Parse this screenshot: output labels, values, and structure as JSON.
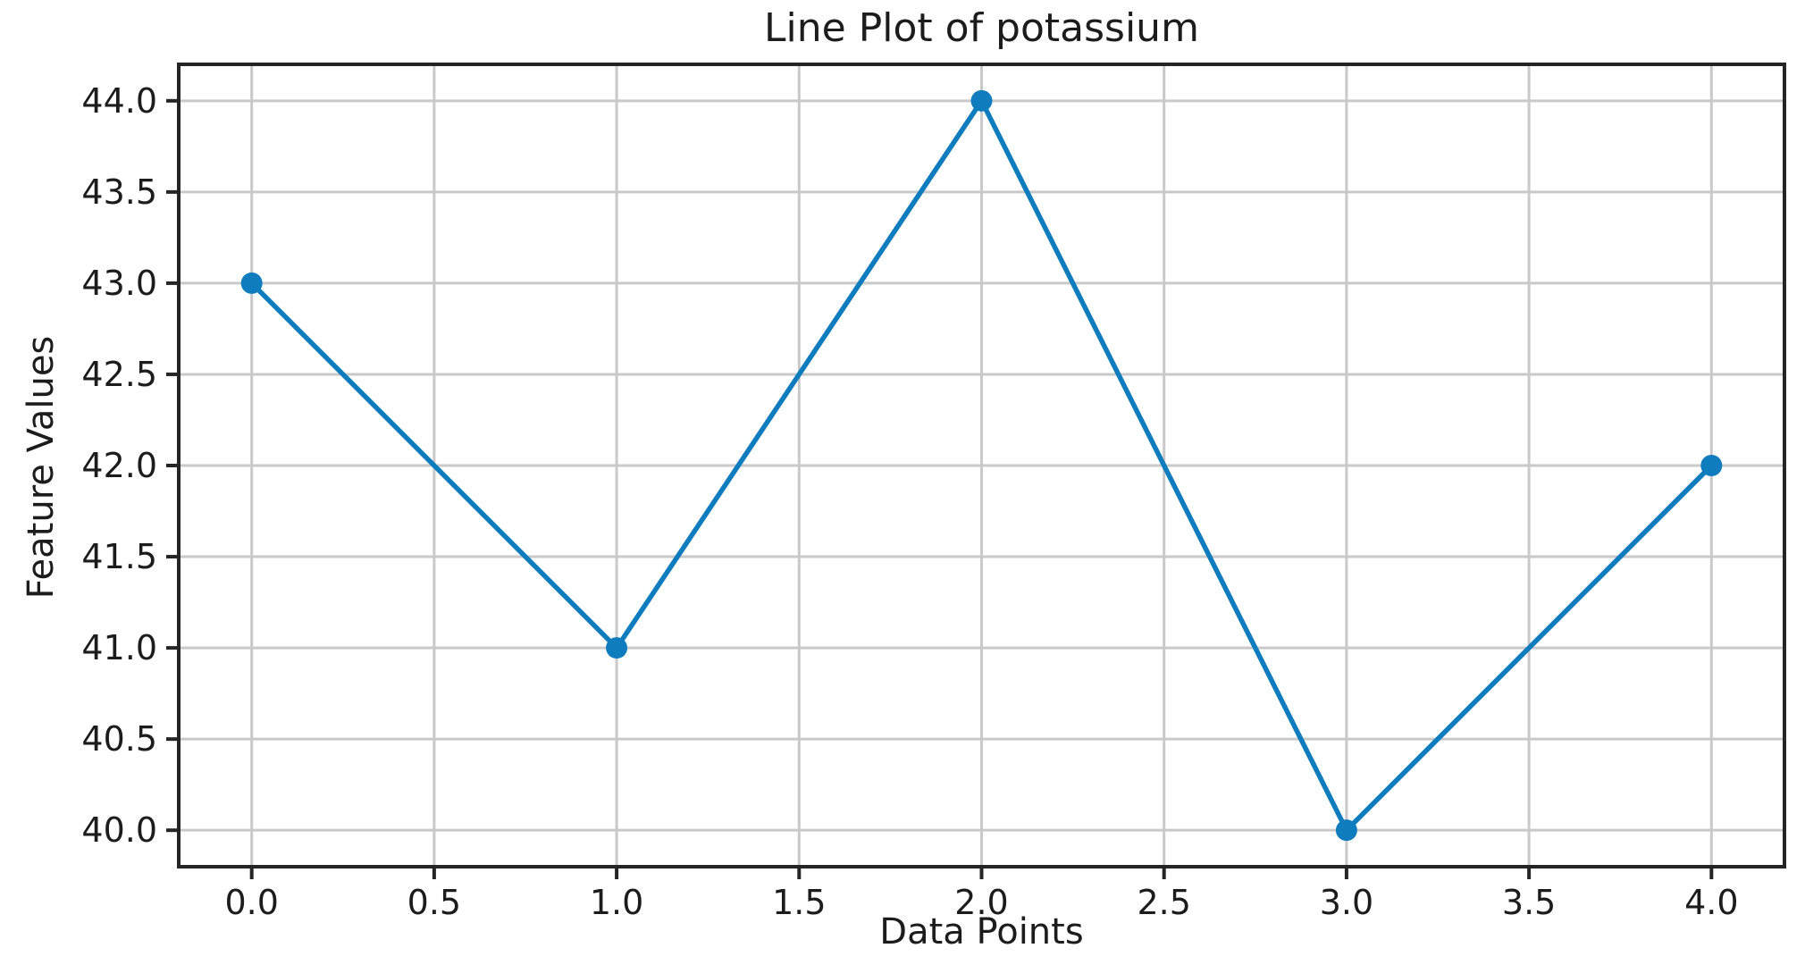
{
  "figure": {
    "title": "Line Plot of potassium",
    "xlabel": "Data Points",
    "ylabel": "Feature Values"
  },
  "chart_data": {
    "type": "line",
    "title": "Line Plot of potassium",
    "xlabel": "Data Points",
    "ylabel": "Feature Values",
    "series": [
      {
        "name": "potassium",
        "x": [
          0,
          1,
          2,
          3,
          4
        ],
        "y": [
          43,
          41,
          44,
          40,
          42
        ]
      }
    ],
    "xticks": [
      0.0,
      0.5,
      1.0,
      1.5,
      2.0,
      2.5,
      3.0,
      3.5,
      4.0
    ],
    "yticks": [
      40.0,
      40.5,
      41.0,
      41.5,
      42.0,
      42.5,
      43.0,
      43.5,
      44.0
    ],
    "tick_format_decimals": 1,
    "xlim": [
      -0.2,
      4.2
    ],
    "ylim": [
      39.8,
      44.2
    ],
    "grid": true,
    "legend": false,
    "marker": "circle",
    "colors": {
      "line": "#0f7dbd",
      "grid": "#c9c9c9",
      "axis": "#252525",
      "text": "#1c1c1c",
      "background": "#ffffff"
    }
  }
}
